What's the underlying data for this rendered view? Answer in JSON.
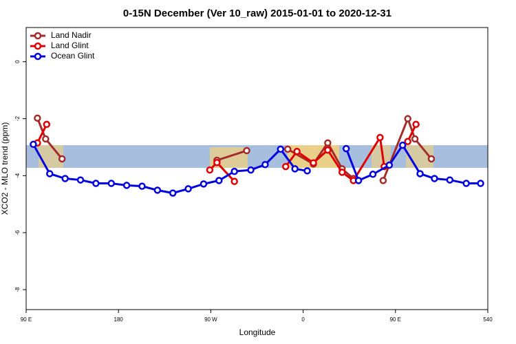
{
  "chart_data": {
    "type": "line",
    "title": "0-15N December (Ver 10_raw)   2015-01-01 to 2020-12-31",
    "x_label": "Longitude",
    "y_label": "XCO2 - MLO trend (ppm)",
    "xlim": [
      90,
      540
    ],
    "ylim": [
      -8.7,
      1.2
    ],
    "xticks": [
      {
        "value": 90,
        "label": "90 E"
      },
      180,
      {
        "value": 270,
        "label": "90 W"
      },
      {
        "value": 360,
        "label": "0"
      },
      {
        "value": 450,
        "label": "90 E"
      },
      540
    ],
    "yticks": [
      0,
      -2,
      -4,
      -6,
      -8
    ],
    "legend": "top-left",
    "series": [
      {
        "name": "Land Nadir",
        "color": "#a52a2a",
        "x": [
          101,
          109,
          125,
          null,
          276,
          305,
          null,
          345,
          370,
          384,
          398,
          409,
          null,
          438,
          462,
          469,
          485
        ],
        "values": [
          -1.98,
          -2.71,
          -3.41,
          null,
          -3.46,
          -3.12,
          null,
          -3.07,
          -3.59,
          -2.85,
          -3.76,
          -4.1,
          null,
          -4.17,
          -2.0,
          -2.71,
          -3.41
        ]
      },
      {
        "name": "Land Glint",
        "color": "#e00000",
        "x": [
          101,
          110,
          null,
          269,
          276,
          293,
          null,
          343,
          354,
          370,
          384,
          398,
          409,
          435,
          439,
          null,
          462,
          470
        ],
        "values": [
          -2.85,
          -2.2,
          null,
          -3.8,
          -3.54,
          -4.2,
          null,
          -3.68,
          -3.15,
          -3.55,
          -3.1,
          -3.88,
          -4.17,
          -2.66,
          -3.68,
          null,
          -2.8,
          -2.2
        ]
      },
      {
        "name": "Ocean Glint",
        "color": "#0000e0",
        "x": [
          97,
          113,
          128,
          143,
          158,
          173,
          188,
          203,
          218,
          233,
          248,
          263,
          278,
          293,
          309,
          323,
          338,
          352,
          364,
          null,
          402,
          414,
          428,
          444,
          457,
          474,
          488,
          503,
          519,
          533
        ],
        "values": [
          -2.9,
          -3.93,
          -4.1,
          -4.15,
          -4.27,
          -4.27,
          -4.34,
          -4.37,
          -4.51,
          -4.61,
          -4.46,
          -4.29,
          -4.17,
          -3.85,
          -3.8,
          -3.61,
          -3.07,
          -3.76,
          -3.83,
          null,
          -3.05,
          -4.17,
          -3.95,
          -3.63,
          -2.93,
          -3.93,
          -4.1,
          -4.15,
          -4.27,
          -4.27
        ]
      }
    ]
  }
}
